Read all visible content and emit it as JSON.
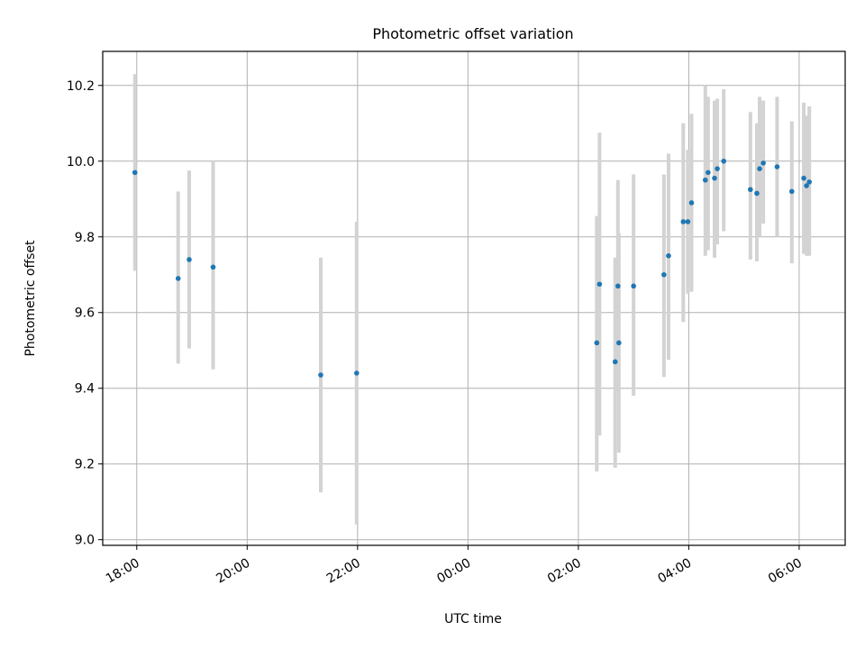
{
  "chart_data": {
    "type": "scatter",
    "title": "Photometric offset variation",
    "xlabel": "UTC time",
    "ylabel": "Photometric offset",
    "x_axis_type": "datetime",
    "xlim": [
      "2000-01-01 17:23",
      "2000-01-02 06:50"
    ],
    "ylim": [
      8.985,
      10.29
    ],
    "xticks": [
      {
        "t": "2000-01-01 18:00",
        "label": "18:00"
      },
      {
        "t": "2000-01-01 20:00",
        "label": "20:00"
      },
      {
        "t": "2000-01-01 22:00",
        "label": "22:00"
      },
      {
        "t": "2000-01-02 00:00",
        "label": "00:00"
      },
      {
        "t": "2000-01-02 02:00",
        "label": "02:00"
      },
      {
        "t": "2000-01-02 04:00",
        "label": "04:00"
      },
      {
        "t": "2000-01-02 06:00",
        "label": "06:00"
      }
    ],
    "yticks": [
      {
        "v": 9.0,
        "label": "9.0"
      },
      {
        "v": 9.2,
        "label": "9.2"
      },
      {
        "v": 9.4,
        "label": "9.4"
      },
      {
        "v": 9.6,
        "label": "9.6"
      },
      {
        "v": 9.8,
        "label": "9.8"
      },
      {
        "v": 10.0,
        "label": "10.0"
      },
      {
        "v": 10.2,
        "label": "10.2"
      }
    ],
    "grid": true,
    "point_color": "#1f77b4",
    "errorbar_color": "#d3d3d3",
    "points": [
      {
        "t": "2000-01-01 17:58",
        "y": 9.97,
        "lo": 9.71,
        "hi": 10.23
      },
      {
        "t": "2000-01-01 18:45",
        "y": 9.69,
        "lo": 9.465,
        "hi": 9.92
      },
      {
        "t": "2000-01-01 18:57",
        "y": 9.74,
        "lo": 9.505,
        "hi": 9.975
      },
      {
        "t": "2000-01-01 19:23",
        "y": 9.72,
        "lo": 9.45,
        "hi": 10.0
      },
      {
        "t": "2000-01-01 21:20",
        "y": 9.435,
        "lo": 9.125,
        "hi": 9.745
      },
      {
        "t": "2000-01-01 21:59",
        "y": 9.44,
        "lo": 9.04,
        "hi": 9.84
      },
      {
        "t": "2000-01-02 02:20",
        "y": 9.52,
        "lo": 9.18,
        "hi": 9.855
      },
      {
        "t": "2000-01-02 02:23",
        "y": 9.675,
        "lo": 9.275,
        "hi": 10.075
      },
      {
        "t": "2000-01-02 02:40",
        "y": 9.47,
        "lo": 9.19,
        "hi": 9.745
      },
      {
        "t": "2000-01-02 02:43",
        "y": 9.67,
        "lo": 9.39,
        "hi": 9.95
      },
      {
        "t": "2000-01-02 02:44",
        "y": 9.52,
        "lo": 9.23,
        "hi": 9.81
      },
      {
        "t": "2000-01-02 03:00",
        "y": 9.67,
        "lo": 9.38,
        "hi": 9.965
      },
      {
        "t": "2000-01-02 03:33",
        "y": 9.7,
        "lo": 9.43,
        "hi": 9.965
      },
      {
        "t": "2000-01-02 03:38",
        "y": 9.75,
        "lo": 9.475,
        "hi": 10.02
      },
      {
        "t": "2000-01-02 03:54",
        "y": 9.84,
        "lo": 9.575,
        "hi": 10.1
      },
      {
        "t": "2000-01-02 03:59",
        "y": 9.84,
        "lo": 9.65,
        "hi": 10.03
      },
      {
        "t": "2000-01-02 04:03",
        "y": 9.89,
        "lo": 9.655,
        "hi": 10.125
      },
      {
        "t": "2000-01-02 04:18",
        "y": 9.95,
        "lo": 9.75,
        "hi": 10.2
      },
      {
        "t": "2000-01-02 04:21",
        "y": 9.97,
        "lo": 9.765,
        "hi": 10.17
      },
      {
        "t": "2000-01-02 04:28",
        "y": 9.955,
        "lo": 9.745,
        "hi": 10.16
      },
      {
        "t": "2000-01-02 04:31",
        "y": 9.98,
        "lo": 9.78,
        "hi": 10.165
      },
      {
        "t": "2000-01-02 04:38",
        "y": 10.0,
        "lo": 9.815,
        "hi": 10.19
      },
      {
        "t": "2000-01-02 05:07",
        "y": 9.925,
        "lo": 9.74,
        "hi": 10.13
      },
      {
        "t": "2000-01-02 05:14",
        "y": 9.915,
        "lo": 9.735,
        "hi": 10.1
      },
      {
        "t": "2000-01-02 05:17",
        "y": 9.98,
        "lo": 9.8,
        "hi": 10.17
      },
      {
        "t": "2000-01-02 05:21",
        "y": 9.995,
        "lo": 9.835,
        "hi": 10.16
      },
      {
        "t": "2000-01-02 05:36",
        "y": 9.985,
        "lo": 9.8,
        "hi": 10.17
      },
      {
        "t": "2000-01-02 05:52",
        "y": 9.92,
        "lo": 9.73,
        "hi": 10.105
      },
      {
        "t": "2000-01-02 06:05",
        "y": 9.955,
        "lo": 9.755,
        "hi": 10.155
      },
      {
        "t": "2000-01-02 06:08",
        "y": 9.935,
        "lo": 9.75,
        "hi": 10.12
      },
      {
        "t": "2000-01-02 06:11",
        "y": 9.945,
        "lo": 9.75,
        "hi": 10.145
      }
    ]
  }
}
